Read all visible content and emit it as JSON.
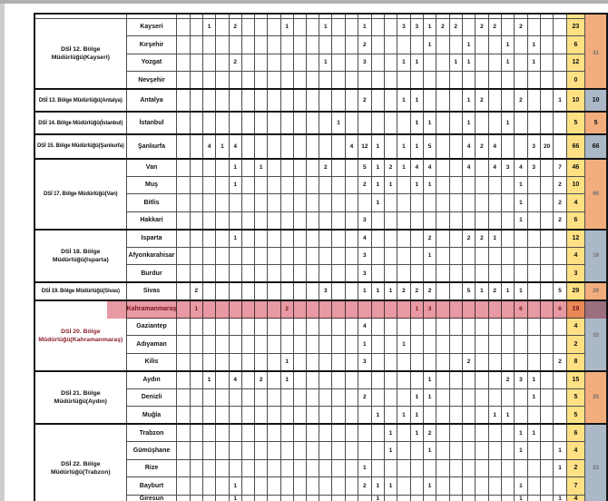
{
  "page": {
    "top_edge_color": "#b0b0b0",
    "left_edge_color": "#cdcdcd",
    "background": "#ffffff"
  },
  "colors": {
    "yellow_total": "#ffe184",
    "orange_group": "#f2ad7d",
    "blue_group": "#abb8c8",
    "highlight_pink": "#e79aa3",
    "highlight_text": "#8c1f2b",
    "grid": "#4d4d4d",
    "grid_thick": "#141414",
    "group_text_small": "#6f6f6f"
  },
  "table": {
    "narrow_columns": 30,
    "highlighted_province": "Kahramanmaraş",
    "regions": [
      {
        "label": "DSİ 12. Bölge Müdürlüğü(Kayseri)",
        "group_total": "41",
        "group_color": "orange",
        "group_text_style": "small",
        "rows": [
          {
            "province": "Kayseri",
            "values": {
              "3": "1",
              "5": "2",
              "9": "1",
              "12": "1",
              "15": "1",
              "18": "3",
              "19": "3",
              "20": "1",
              "21": "2",
              "22": "2",
              "24": "2",
              "25": "2",
              "27": "2"
            },
            "total": "23"
          },
          {
            "province": "Kırşehir",
            "values": {
              "15": "2",
              "20": "1",
              "23": "1",
              "26": "1",
              "28": "1"
            },
            "total": "6"
          },
          {
            "province": "Yozgat",
            "values": {
              "5": "2",
              "12": "1",
              "15": "3",
              "18": "1",
              "19": "1",
              "22": "1",
              "23": "1",
              "26": "1",
              "28": "1"
            },
            "total": "12"
          },
          {
            "province": "Nevşehir",
            "values": {},
            "total": "0"
          }
        ]
      },
      {
        "label": "DSİ 13. Bölge Müdürlüğü(Antalya)",
        "group_total": "10",
        "group_color": "blue",
        "group_text_style": "bold",
        "rows": [
          {
            "province": "Antalya",
            "values": {
              "15": "2",
              "18": "1",
              "19": "1",
              "23": "1",
              "24": "2",
              "27": "2",
              "30": "1"
            },
            "total": "10"
          }
        ]
      },
      {
        "label": "DSİ 14. Bölge Müdürlüğü(İstanbul)",
        "group_total": "5",
        "group_color": "orange",
        "group_text_style": "bold",
        "rows": [
          {
            "province": "İstanbul",
            "values": {
              "13": "1",
              "19": "1",
              "20": "1",
              "23": "1",
              "26": "1"
            },
            "total": "5"
          }
        ]
      },
      {
        "label": "DSİ 15. Bölge Müdürlüğü(Şanlıurfa)",
        "group_total": "66",
        "group_color": "blue",
        "group_text_style": "bold",
        "rows": [
          {
            "province": "Şanlıurfa",
            "values": {
              "3": "4",
              "4": "1",
              "5": "4",
              "14": "4",
              "15": "12",
              "16": "1",
              "18": "1",
              "19": "1",
              "20": "5",
              "23": "4",
              "24": "2",
              "25": "4",
              "28": "3",
              "29": "20"
            },
            "total": "66"
          }
        ]
      },
      {
        "label": "DSİ 17. Bölge Müdürlüğü(Van)",
        "group_total": "66",
        "group_color": "orange",
        "group_text_style": "small",
        "rows": [
          {
            "province": "Van",
            "values": {
              "5": "1",
              "7": "1",
              "12": "2",
              "15": "5",
              "16": "1",
              "17": "2",
              "18": "1",
              "19": "4",
              "20": "4",
              "23": "4",
              "25": "4",
              "26": "3",
              "27": "4",
              "28": "3",
              "30": "7"
            },
            "total": "46"
          },
          {
            "province": "Muş",
            "values": {
              "5": "1",
              "15": "2",
              "16": "1",
              "17": "1",
              "19": "1",
              "20": "1",
              "27": "1",
              "30": "2"
            },
            "total": "10"
          },
          {
            "province": "Bitlis",
            "values": {
              "16": "1",
              "27": "1",
              "30": "2"
            },
            "total": "4"
          },
          {
            "province": "Hakkari",
            "values": {
              "15": "3",
              "27": "1",
              "30": "2"
            },
            "total": "6"
          }
        ]
      },
      {
        "label": "DSİ 18. Bölge Müdürlüğü(Isparta)",
        "group_total": "19",
        "group_color": "blue",
        "group_text_style": "small",
        "rows": [
          {
            "province": "Isparta",
            "values": {
              "5": "1",
              "15": "4",
              "20": "2",
              "23": "2",
              "24": "2",
              "25": "1"
            },
            "total": "12"
          },
          {
            "province": "Afyonkarahisar",
            "values": {
              "15": "3",
              "20": "1"
            },
            "total": "4"
          },
          {
            "province": "Burdur",
            "values": {
              "15": "3"
            },
            "total": "3"
          }
        ]
      },
      {
        "label": "DSİ 19. Bölge Müdürlüğü(Sivas)",
        "group_total": "29",
        "group_color": "orange",
        "group_text_style": "small",
        "rows": [
          {
            "province": "Sivas",
            "values": {
              "2": "2",
              "12": "3",
              "15": "1",
              "16": "1",
              "17": "1",
              "18": "2",
              "19": "2",
              "20": "2",
              "23": "5",
              "24": "1",
              "25": "2",
              "26": "1",
              "27": "1",
              "30": "5"
            },
            "total": "29"
          }
        ]
      },
      {
        "label": "DSİ 20. Bölge Müdürlüğü(Kahramanmaraş)",
        "group_total": "33",
        "group_color": "blue",
        "group_text_style": "small",
        "rows": [
          {
            "province": "Kahramanmaraş",
            "highlight": true,
            "values": {
              "2": "1",
              "9": "2",
              "19": "1",
              "20": "3",
              "27": "6",
              "30": "6"
            },
            "total": "19"
          },
          {
            "province": "Gaziantep",
            "values": {
              "15": "4"
            },
            "total": "4"
          },
          {
            "province": "Adıyaman",
            "values": {
              "15": "1",
              "18": "1"
            },
            "total": "2"
          },
          {
            "province": "Kilis",
            "values": {
              "9": "1",
              "15": "3",
              "23": "2",
              "30": "2"
            },
            "total": "8"
          }
        ]
      },
      {
        "label": "DSİ 21. Bölge Müdürlüğü(Aydın)",
        "group_total": "25",
        "group_color": "orange",
        "group_text_style": "small",
        "rows": [
          {
            "province": "Aydın",
            "values": {
              "3": "1",
              "5": "4",
              "7": "2",
              "9": "1",
              "20": "1",
              "26": "2",
              "27": "3",
              "28": "1"
            },
            "total": "15"
          },
          {
            "province": "Denizli",
            "values": {
              "15": "2",
              "19": "1",
              "20": "1",
              "28": "1"
            },
            "total": "5"
          },
          {
            "province": "Muğla",
            "values": {
              "16": "1",
              "18": "1",
              "19": "1",
              "25": "1",
              "26": "1"
            },
            "total": "5"
          }
        ]
      },
      {
        "label": "DSİ 22. Bölge Müdürlüğü(Trabzon)",
        "group_total": "23",
        "group_color": "blue",
        "group_text_style": "small",
        "rows": [
          {
            "province": "Trabzon",
            "values": {
              "17": "1",
              "19": "1",
              "20": "2",
              "27": "1",
              "28": "1"
            },
            "total": "6"
          },
          {
            "province": "Gümüşhane",
            "values": {
              "17": "1",
              "20": "1",
              "27": "1",
              "30": "1"
            },
            "total": "4"
          },
          {
            "province": "Rize",
            "values": {
              "15": "1",
              "30": "1"
            },
            "total": "2"
          },
          {
            "province": "Bayburt",
            "values": {
              "5": "1",
              "15": "2",
              "16": "1",
              "17": "1",
              "20": "1",
              "27": "1"
            },
            "total": "7"
          },
          {
            "province": "Giresun",
            "values": {
              "5": "1",
              "16": "1",
              "27": "1",
              "30": "1"
            },
            "total": "4"
          }
        ]
      }
    ]
  }
}
